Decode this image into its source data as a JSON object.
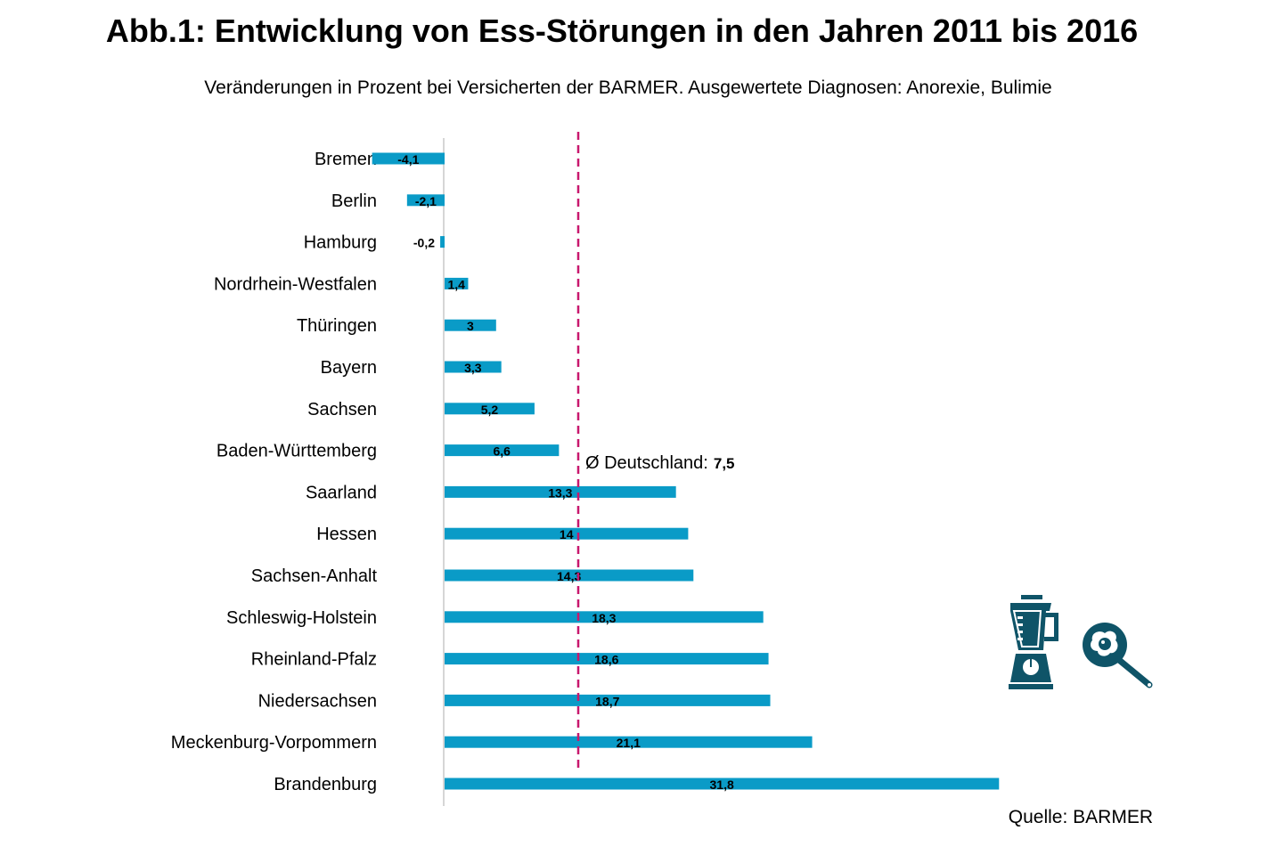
{
  "title": "Abb.1: Entwicklung von Ess-Störungen in den Jahren 2011 bis 2016",
  "subtitle": "Veränderungen in Prozent bei Versicherten der BARMER. Ausgewertete Diagnosen: Anorexie, Bulimie",
  "source": "Quelle: BARMER",
  "colors": {
    "bar": "#0a9bc7",
    "average_line": "#c8186e",
    "icons": "#0f5468"
  },
  "icons": [
    "blender-icon",
    "frying-pan-egg-icon"
  ],
  "chart_data": {
    "type": "bar",
    "orientation": "horizontal",
    "title": "Abb.1: Entwicklung von Ess-Störungen in den Jahren 2011 bis 2016",
    "categories": [
      "Bremen",
      "Berlin",
      "Hamburg",
      "Nordrhein-Westfalen",
      "Thüringen",
      "Bayern",
      "Sachsen",
      "Baden-Württemberg",
      "Saarland",
      "Hessen",
      "Sachsen-Anhalt",
      "Schleswig-Holstein",
      "Rheinland-Pfalz",
      "Niedersachsen",
      "Meckenburg-Vorpommern",
      "Brandenburg"
    ],
    "values": [
      -4.1,
      -2.1,
      -0.2,
      1.4,
      3,
      3.3,
      5.2,
      6.6,
      13.3,
      14,
      14.3,
      18.3,
      18.6,
      18.7,
      21.1,
      31.8
    ],
    "data_labels": [
      "-4,1",
      "-2,1",
      "-0,2",
      "1,4",
      "3",
      "3,3",
      "5,2",
      "6,6",
      "13,3",
      "14",
      "14,3",
      "18,3",
      "18,6",
      "18,7",
      "21,1",
      "31,8"
    ],
    "reference_line": {
      "value": 7.5,
      "label": "Ø Deutschland:",
      "value_label": "7,5",
      "style": "dashed"
    },
    "xlim": [
      -4.1,
      31.8
    ],
    "grid": false,
    "legend": "none"
  }
}
